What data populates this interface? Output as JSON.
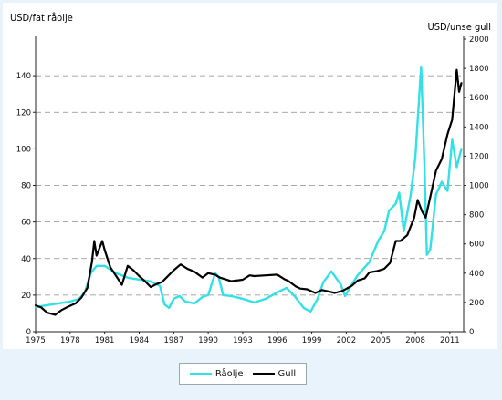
{
  "chart_data": {
    "type": "line",
    "title": "",
    "ylabel_left": "USD/fat råolje",
    "ylabel_right": "USD/unse gull",
    "ylim_left": [
      0,
      160
    ],
    "ylim_right": [
      0,
      2000
    ],
    "yticks_left": [
      "0",
      "20",
      "40",
      "60",
      "80",
      "100",
      "120",
      "140"
    ],
    "yticks_right": [
      "0",
      "200",
      "400",
      "600",
      "800",
      "1000",
      "1200",
      "1400",
      "1600",
      "1800",
      "2000"
    ],
    "xlim": [
      1975,
      2012.2
    ],
    "xticks": [
      "1975",
      "1978",
      "1981",
      "1984",
      "1987",
      "1990",
      "1993",
      "1996",
      "1999",
      "2002",
      "2005",
      "2008",
      "2011"
    ],
    "grid": "horizontal dashed",
    "legend_position": "bottom-center",
    "series": [
      {
        "name": "Råolje",
        "axis": "left",
        "color": "#33e0e6",
        "points": [
          [
            1975.0,
            13.5
          ],
          [
            1976.0,
            14.5
          ],
          [
            1977.0,
            15.5
          ],
          [
            1978.0,
            16.5
          ],
          [
            1978.8,
            18.0
          ],
          [
            1979.3,
            22.0
          ],
          [
            1979.8,
            32.0
          ],
          [
            1980.3,
            36.0
          ],
          [
            1981.0,
            36.0
          ],
          [
            1981.5,
            34.0
          ],
          [
            1982.0,
            32.0
          ],
          [
            1983.0,
            29.5
          ],
          [
            1984.0,
            28.5
          ],
          [
            1985.0,
            27.5
          ],
          [
            1985.8,
            25.0
          ],
          [
            1986.2,
            15.0
          ],
          [
            1986.6,
            13.0
          ],
          [
            1987.0,
            18.0
          ],
          [
            1987.5,
            19.5
          ],
          [
            1988.0,
            16.5
          ],
          [
            1988.8,
            15.5
          ],
          [
            1989.5,
            19.0
          ],
          [
            1990.0,
            20.0
          ],
          [
            1990.6,
            32.0
          ],
          [
            1990.9,
            30.0
          ],
          [
            1991.3,
            20.0
          ],
          [
            1992.0,
            19.5
          ],
          [
            1993.0,
            18.0
          ],
          [
            1994.0,
            16.0
          ],
          [
            1995.0,
            18.0
          ],
          [
            1996.0,
            21.5
          ],
          [
            1996.8,
            24.0
          ],
          [
            1997.5,
            19.5
          ],
          [
            1998.3,
            13.0
          ],
          [
            1998.9,
            11.0
          ],
          [
            1999.5,
            18.0
          ],
          [
            2000.0,
            27.0
          ],
          [
            2000.7,
            33.0
          ],
          [
            2001.5,
            26.0
          ],
          [
            2001.9,
            19.5
          ],
          [
            2002.5,
            26.0
          ],
          [
            2003.0,
            31.0
          ],
          [
            2004.0,
            38.0
          ],
          [
            2004.8,
            50.0
          ],
          [
            2005.3,
            55.0
          ],
          [
            2005.7,
            66.0
          ],
          [
            2006.3,
            70.0
          ],
          [
            2006.6,
            76.0
          ],
          [
            2007.0,
            55.0
          ],
          [
            2007.6,
            75.0
          ],
          [
            2008.0,
            95.0
          ],
          [
            2008.5,
            145.0
          ],
          [
            2008.8,
            90.0
          ],
          [
            2009.0,
            42.0
          ],
          [
            2009.3,
            45.0
          ],
          [
            2009.8,
            75.0
          ],
          [
            2010.3,
            82.0
          ],
          [
            2010.8,
            77.0
          ],
          [
            2011.2,
            105.0
          ],
          [
            2011.6,
            90.0
          ],
          [
            2012.0,
            100.0
          ]
        ]
      },
      {
        "name": "Gull",
        "axis": "right",
        "color": "#000000",
        "points": [
          [
            1975.0,
            180
          ],
          [
            1975.5,
            165
          ],
          [
            1976.0,
            130
          ],
          [
            1976.7,
            115
          ],
          [
            1977.2,
            145
          ],
          [
            1977.8,
            170
          ],
          [
            1978.5,
            195
          ],
          [
            1979.0,
            235
          ],
          [
            1979.5,
            300
          ],
          [
            1979.9,
            480
          ],
          [
            1980.1,
            620
          ],
          [
            1980.3,
            520
          ],
          [
            1980.8,
            620
          ],
          [
            1981.0,
            560
          ],
          [
            1981.5,
            440
          ],
          [
            1982.0,
            380
          ],
          [
            1982.5,
            320
          ],
          [
            1983.0,
            450
          ],
          [
            1983.5,
            420
          ],
          [
            1984.0,
            380
          ],
          [
            1984.5,
            345
          ],
          [
            1985.0,
            305
          ],
          [
            1985.5,
            325
          ],
          [
            1986.0,
            340
          ],
          [
            1986.5,
            380
          ],
          [
            1987.0,
            420
          ],
          [
            1987.6,
            460
          ],
          [
            1988.2,
            430
          ],
          [
            1988.8,
            410
          ],
          [
            1989.5,
            370
          ],
          [
            1990.0,
            400
          ],
          [
            1990.6,
            390
          ],
          [
            1991.0,
            370
          ],
          [
            1992.0,
            345
          ],
          [
            1993.0,
            355
          ],
          [
            1993.6,
            385
          ],
          [
            1994.0,
            380
          ],
          [
            1995.0,
            385
          ],
          [
            1996.0,
            390
          ],
          [
            1996.6,
            360
          ],
          [
            1997.0,
            345
          ],
          [
            1997.6,
            310
          ],
          [
            1998.0,
            295
          ],
          [
            1998.6,
            290
          ],
          [
            1999.3,
            265
          ],
          [
            1999.9,
            285
          ],
          [
            2000.5,
            275
          ],
          [
            2001.0,
            265
          ],
          [
            2001.7,
            280
          ],
          [
            2002.5,
            315
          ],
          [
            2003.0,
            350
          ],
          [
            2003.6,
            365
          ],
          [
            2004.0,
            405
          ],
          [
            2004.7,
            415
          ],
          [
            2005.3,
            430
          ],
          [
            2005.8,
            470
          ],
          [
            2006.3,
            620
          ],
          [
            2006.7,
            620
          ],
          [
            2007.3,
            660
          ],
          [
            2007.9,
            780
          ],
          [
            2008.2,
            900
          ],
          [
            2008.6,
            820
          ],
          [
            2008.9,
            780
          ],
          [
            2009.3,
            920
          ],
          [
            2009.8,
            1100
          ],
          [
            2010.3,
            1180
          ],
          [
            2010.8,
            1350
          ],
          [
            2011.2,
            1450
          ],
          [
            2011.6,
            1790
          ],
          [
            2011.8,
            1640
          ],
          [
            2012.0,
            1700
          ]
        ]
      }
    ]
  }
}
